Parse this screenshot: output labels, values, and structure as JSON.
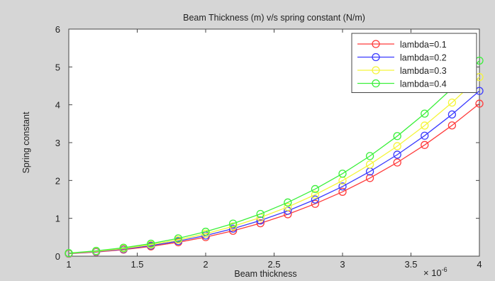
{
  "chart_data": {
    "type": "line",
    "title": "Beam Thickness (m) v/s spring constant (N/m)",
    "xlabel": "Beam thickness",
    "ylabel": "Spring constant",
    "x_exponent_label": "× 10",
    "x_exponent_power": "-6",
    "xlim": [
      1,
      4
    ],
    "ylim": [
      0,
      6
    ],
    "xticks": [
      1,
      1.5,
      2,
      2.5,
      3,
      3.5,
      4
    ],
    "xtick_labels": [
      "1",
      "1.5",
      "2",
      "2.5",
      "3",
      "3.5",
      "4"
    ],
    "yticks": [
      0,
      1,
      2,
      3,
      4,
      5,
      6
    ],
    "ytick_labels": [
      "0",
      "1",
      "2",
      "3",
      "4",
      "5",
      "6"
    ],
    "grid": false,
    "legend_position": "top-right",
    "marker": "circle",
    "x": [
      1.0,
      1.2,
      1.4,
      1.6,
      1.8,
      2.0,
      2.2,
      2.4,
      2.6,
      2.8,
      3.0,
      3.2,
      3.4,
      3.6,
      3.8,
      4.0
    ],
    "series": [
      {
        "name": "lambda=0.1",
        "color": "#ff3b3b",
        "values": [
          0.063,
          0.109,
          0.173,
          0.258,
          0.367,
          0.504,
          0.671,
          0.87,
          1.107,
          1.383,
          1.7,
          2.064,
          2.475,
          2.938,
          3.455,
          4.03
        ]
      },
      {
        "name": "lambda=0.2",
        "color": "#3b3bff",
        "values": [
          0.068,
          0.118,
          0.187,
          0.28,
          0.398,
          0.546,
          0.727,
          0.943,
          1.199,
          1.498,
          1.842,
          2.236,
          2.682,
          3.183,
          3.744,
          4.366
        ]
      },
      {
        "name": "lambda=0.3",
        "color": "#f5f53a",
        "values": [
          0.074,
          0.128,
          0.203,
          0.303,
          0.431,
          0.592,
          0.788,
          1.022,
          1.3,
          1.624,
          1.997,
          2.424,
          2.907,
          3.451,
          4.058,
          4.733
        ]
      },
      {
        "name": "lambda=0.4",
        "color": "#3bf03b",
        "values": [
          0.081,
          0.14,
          0.222,
          0.331,
          0.471,
          0.646,
          0.86,
          1.116,
          1.419,
          1.773,
          2.18,
          2.646,
          3.173,
          3.767,
          4.43,
          5.166
        ]
      }
    ]
  }
}
